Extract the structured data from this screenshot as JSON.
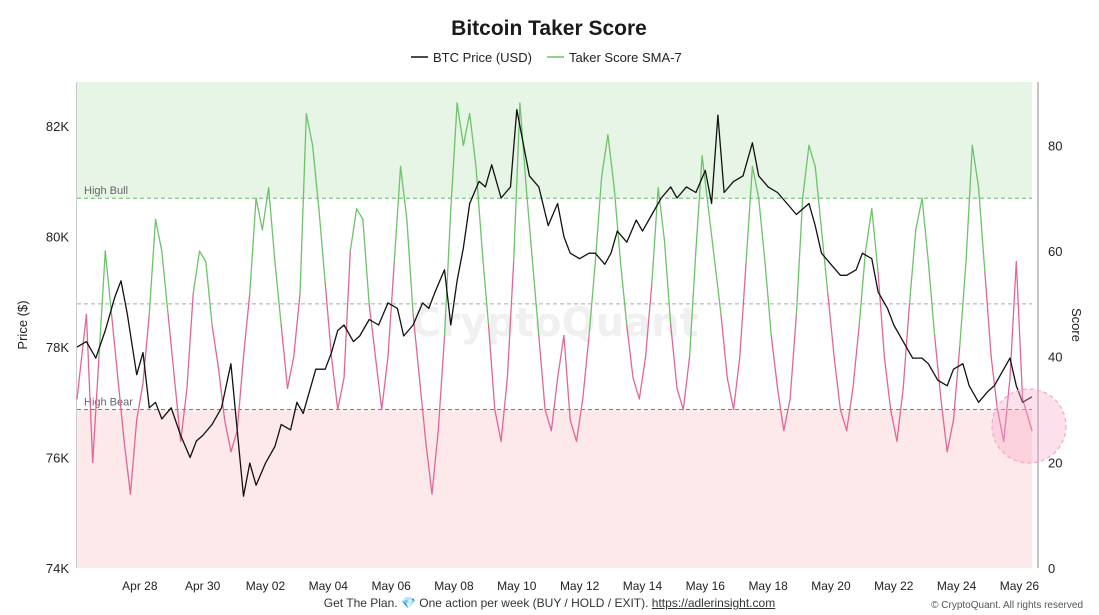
{
  "footer": {
    "text": "Get The Plan.",
    "icon": "gem-icon",
    "text2": "One action per week (BUY / HOLD / EXIT).",
    "link": "https://adlerinsight.com"
  },
  "copyright": "© CryptoQuant. All rights reserved",
  "watermark": "CryptoQuant",
  "colors": {
    "price": "#111111",
    "score_bull": "#6cc36a",
    "score_bear": "#e0669a",
    "bull_zone": "#e6f5e6",
    "bear_zone": "#fde9e9",
    "high_bull_line": "#69b86a",
    "high_bear_line": "#d45a5a",
    "mid_line": "#aaaaaa",
    "highlight": "#f7a8c8"
  },
  "chart_data": {
    "type": "line",
    "title": "Bitcoin Taker Score",
    "legend": [
      {
        "name": "BTC Price (USD)",
        "color": "#111111"
      },
      {
        "name": "Taker Score SMA-7",
        "color": "#6cc36a"
      }
    ],
    "legend_position": "top-center",
    "ylabel_left": "Price ($)",
    "ylabel_right": "Score",
    "ylim_left": [
      74000,
      82800
    ],
    "yticks_left": [
      "74K",
      "76K",
      "78K",
      "80K",
      "82K"
    ],
    "ylim_right": [
      0,
      92
    ],
    "yticks_right": [
      "0",
      "20",
      "40",
      "60",
      "80"
    ],
    "xlim_days": [
      0,
      30.4
    ],
    "xticks": [
      "Apr 28",
      "Apr 30",
      "May 02",
      "May 04",
      "May 06",
      "May 08",
      "May 10",
      "May 12",
      "May 14",
      "May 16",
      "May 18",
      "May 20",
      "May 22",
      "May 24",
      "May 26"
    ],
    "zones": [
      {
        "label": "High Bull",
        "score": 70
      },
      {
        "label": "",
        "score": 50
      },
      {
        "label": "High Bear",
        "score": 30
      }
    ],
    "grid": false,
    "series": [
      {
        "name": "BTC Price (USD)",
        "points": [
          [
            0.0,
            78000
          ],
          [
            0.3,
            78100
          ],
          [
            0.6,
            77800
          ],
          [
            0.9,
            78300
          ],
          [
            1.2,
            78900
          ],
          [
            1.4,
            79200
          ],
          [
            1.6,
            78600
          ],
          [
            1.9,
            77500
          ],
          [
            2.1,
            77900
          ],
          [
            2.3,
            76900
          ],
          [
            2.5,
            77000
          ],
          [
            2.7,
            76700
          ],
          [
            3.0,
            76900
          ],
          [
            3.3,
            76400
          ],
          [
            3.6,
            76000
          ],
          [
            3.8,
            76300
          ],
          [
            4.0,
            76400
          ],
          [
            4.3,
            76600
          ],
          [
            4.6,
            76900
          ],
          [
            4.9,
            77700
          ],
          [
            5.1,
            76500
          ],
          [
            5.3,
            75300
          ],
          [
            5.5,
            75900
          ],
          [
            5.7,
            75500
          ],
          [
            6.0,
            75900
          ],
          [
            6.3,
            76200
          ],
          [
            6.5,
            76600
          ],
          [
            6.8,
            76500
          ],
          [
            7.0,
            77000
          ],
          [
            7.2,
            76800
          ],
          [
            7.4,
            77200
          ],
          [
            7.6,
            77600
          ],
          [
            7.9,
            77600
          ],
          [
            8.1,
            77900
          ],
          [
            8.3,
            78300
          ],
          [
            8.5,
            78400
          ],
          [
            8.8,
            78100
          ],
          [
            9.0,
            78200
          ],
          [
            9.3,
            78500
          ],
          [
            9.6,
            78400
          ],
          [
            9.9,
            78800
          ],
          [
            10.2,
            78700
          ],
          [
            10.4,
            78200
          ],
          [
            10.7,
            78400
          ],
          [
            11.0,
            78800
          ],
          [
            11.2,
            78700
          ],
          [
            11.4,
            79000
          ],
          [
            11.7,
            79400
          ],
          [
            11.9,
            78400
          ],
          [
            12.1,
            79200
          ],
          [
            12.3,
            79800
          ],
          [
            12.5,
            80600
          ],
          [
            12.8,
            81000
          ],
          [
            13.0,
            80900
          ],
          [
            13.2,
            81300
          ],
          [
            13.5,
            80700
          ],
          [
            13.8,
            80900
          ],
          [
            14.0,
            82300
          ],
          [
            14.2,
            81700
          ],
          [
            14.4,
            81100
          ],
          [
            14.7,
            80900
          ],
          [
            15.0,
            80200
          ],
          [
            15.3,
            80600
          ],
          [
            15.5,
            80000
          ],
          [
            15.7,
            79700
          ],
          [
            16.0,
            79600
          ],
          [
            16.3,
            79700
          ],
          [
            16.5,
            79700
          ],
          [
            16.8,
            79500
          ],
          [
            17.0,
            79700
          ],
          [
            17.2,
            80100
          ],
          [
            17.5,
            79900
          ],
          [
            17.8,
            80300
          ],
          [
            18.0,
            80100
          ],
          [
            18.3,
            80400
          ],
          [
            18.6,
            80700
          ],
          [
            18.9,
            80900
          ],
          [
            19.1,
            80700
          ],
          [
            19.4,
            80900
          ],
          [
            19.7,
            80800
          ],
          [
            20.0,
            81200
          ],
          [
            20.2,
            80600
          ],
          [
            20.4,
            82200
          ],
          [
            20.6,
            80800
          ],
          [
            20.9,
            81000
          ],
          [
            21.2,
            81100
          ],
          [
            21.5,
            81700
          ],
          [
            21.7,
            81100
          ],
          [
            22.0,
            80900
          ],
          [
            22.3,
            80800
          ],
          [
            22.6,
            80600
          ],
          [
            22.9,
            80400
          ],
          [
            23.1,
            80500
          ],
          [
            23.3,
            80600
          ],
          [
            23.5,
            80200
          ],
          [
            23.7,
            79700
          ],
          [
            24.0,
            79500
          ],
          [
            24.3,
            79300
          ],
          [
            24.5,
            79300
          ],
          [
            24.8,
            79400
          ],
          [
            25.0,
            79700
          ],
          [
            25.3,
            79600
          ],
          [
            25.5,
            79000
          ],
          [
            25.8,
            78700
          ],
          [
            26.0,
            78400
          ],
          [
            26.3,
            78100
          ],
          [
            26.6,
            77800
          ],
          [
            26.9,
            77800
          ],
          [
            27.1,
            77700
          ],
          [
            27.4,
            77400
          ],
          [
            27.7,
            77300
          ],
          [
            27.9,
            77600
          ],
          [
            28.2,
            77700
          ],
          [
            28.4,
            77300
          ],
          [
            28.7,
            77000
          ],
          [
            29.0,
            77200
          ],
          [
            29.2,
            77300
          ],
          [
            29.5,
            77600
          ],
          [
            29.7,
            77800
          ],
          [
            29.9,
            77300
          ],
          [
            30.1,
            77000
          ],
          [
            30.4,
            77100
          ]
        ]
      },
      {
        "name": "Taker Score SMA-7",
        "points": [
          [
            0.0,
            32
          ],
          [
            0.3,
            48
          ],
          [
            0.5,
            20
          ],
          [
            0.7,
            40
          ],
          [
            0.9,
            60
          ],
          [
            1.1,
            48
          ],
          [
            1.3,
            36
          ],
          [
            1.5,
            24
          ],
          [
            1.7,
            14
          ],
          [
            1.9,
            28
          ],
          [
            2.1,
            35
          ],
          [
            2.3,
            48
          ],
          [
            2.5,
            66
          ],
          [
            2.7,
            60
          ],
          [
            2.9,
            48
          ],
          [
            3.1,
            36
          ],
          [
            3.3,
            24
          ],
          [
            3.5,
            34
          ],
          [
            3.7,
            52
          ],
          [
            3.9,
            60
          ],
          [
            4.1,
            58
          ],
          [
            4.3,
            46
          ],
          [
            4.5,
            38
          ],
          [
            4.7,
            28
          ],
          [
            4.9,
            22
          ],
          [
            5.1,
            26
          ],
          [
            5.3,
            40
          ],
          [
            5.5,
            52
          ],
          [
            5.7,
            70
          ],
          [
            5.9,
            64
          ],
          [
            6.1,
            72
          ],
          [
            6.3,
            58
          ],
          [
            6.5,
            46
          ],
          [
            6.7,
            34
          ],
          [
            6.9,
            40
          ],
          [
            7.1,
            52
          ],
          [
            7.3,
            86
          ],
          [
            7.5,
            80
          ],
          [
            7.7,
            68
          ],
          [
            7.9,
            54
          ],
          [
            8.1,
            40
          ],
          [
            8.3,
            30
          ],
          [
            8.5,
            36
          ],
          [
            8.7,
            60
          ],
          [
            8.9,
            68
          ],
          [
            9.1,
            66
          ],
          [
            9.3,
            50
          ],
          [
            9.5,
            40
          ],
          [
            9.7,
            30
          ],
          [
            9.9,
            40
          ],
          [
            10.1,
            58
          ],
          [
            10.3,
            76
          ],
          [
            10.5,
            66
          ],
          [
            10.7,
            48
          ],
          [
            10.9,
            36
          ],
          [
            11.1,
            24
          ],
          [
            11.3,
            14
          ],
          [
            11.5,
            26
          ],
          [
            11.7,
            44
          ],
          [
            11.9,
            68
          ],
          [
            12.1,
            88
          ],
          [
            12.3,
            80
          ],
          [
            12.5,
            86
          ],
          [
            12.7,
            76
          ],
          [
            12.9,
            60
          ],
          [
            13.1,
            46
          ],
          [
            13.3,
            30
          ],
          [
            13.5,
            24
          ],
          [
            13.7,
            36
          ],
          [
            13.9,
            58
          ],
          [
            14.1,
            88
          ],
          [
            14.3,
            72
          ],
          [
            14.5,
            58
          ],
          [
            14.7,
            44
          ],
          [
            14.9,
            30
          ],
          [
            15.1,
            26
          ],
          [
            15.3,
            36
          ],
          [
            15.5,
            44
          ],
          [
            15.7,
            28
          ],
          [
            15.9,
            24
          ],
          [
            16.1,
            32
          ],
          [
            16.3,
            44
          ],
          [
            16.5,
            58
          ],
          [
            16.7,
            74
          ],
          [
            16.9,
            82
          ],
          [
            17.1,
            72
          ],
          [
            17.3,
            58
          ],
          [
            17.5,
            46
          ],
          [
            17.7,
            36
          ],
          [
            17.9,
            32
          ],
          [
            18.1,
            40
          ],
          [
            18.3,
            54
          ],
          [
            18.5,
            72
          ],
          [
            18.7,
            62
          ],
          [
            18.9,
            46
          ],
          [
            19.1,
            34
          ],
          [
            19.3,
            30
          ],
          [
            19.5,
            40
          ],
          [
            19.7,
            60
          ],
          [
            19.9,
            78
          ],
          [
            20.1,
            68
          ],
          [
            20.3,
            58
          ],
          [
            20.5,
            48
          ],
          [
            20.7,
            36
          ],
          [
            20.9,
            30
          ],
          [
            21.1,
            40
          ],
          [
            21.3,
            58
          ],
          [
            21.5,
            76
          ],
          [
            21.7,
            70
          ],
          [
            21.9,
            58
          ],
          [
            22.1,
            44
          ],
          [
            22.3,
            34
          ],
          [
            22.5,
            26
          ],
          [
            22.7,
            32
          ],
          [
            22.9,
            48
          ],
          [
            23.1,
            70
          ],
          [
            23.3,
            80
          ],
          [
            23.5,
            76
          ],
          [
            23.7,
            64
          ],
          [
            23.9,
            52
          ],
          [
            24.1,
            40
          ],
          [
            24.3,
            30
          ],
          [
            24.5,
            26
          ],
          [
            24.7,
            34
          ],
          [
            24.9,
            46
          ],
          [
            25.1,
            60
          ],
          [
            25.3,
            68
          ],
          [
            25.5,
            56
          ],
          [
            25.7,
            40
          ],
          [
            25.9,
            30
          ],
          [
            26.1,
            24
          ],
          [
            26.3,
            34
          ],
          [
            26.5,
            50
          ],
          [
            26.7,
            64
          ],
          [
            26.9,
            70
          ],
          [
            27.1,
            58
          ],
          [
            27.3,
            44
          ],
          [
            27.5,
            32
          ],
          [
            27.7,
            22
          ],
          [
            27.9,
            28
          ],
          [
            28.1,
            42
          ],
          [
            28.3,
            58
          ],
          [
            28.5,
            80
          ],
          [
            28.7,
            72
          ],
          [
            28.9,
            56
          ],
          [
            29.1,
            40
          ],
          [
            29.3,
            30
          ],
          [
            29.5,
            24
          ],
          [
            29.7,
            36
          ],
          [
            29.9,
            58
          ],
          [
            30.1,
            32
          ],
          [
            30.4,
            26
          ]
        ]
      }
    ]
  }
}
